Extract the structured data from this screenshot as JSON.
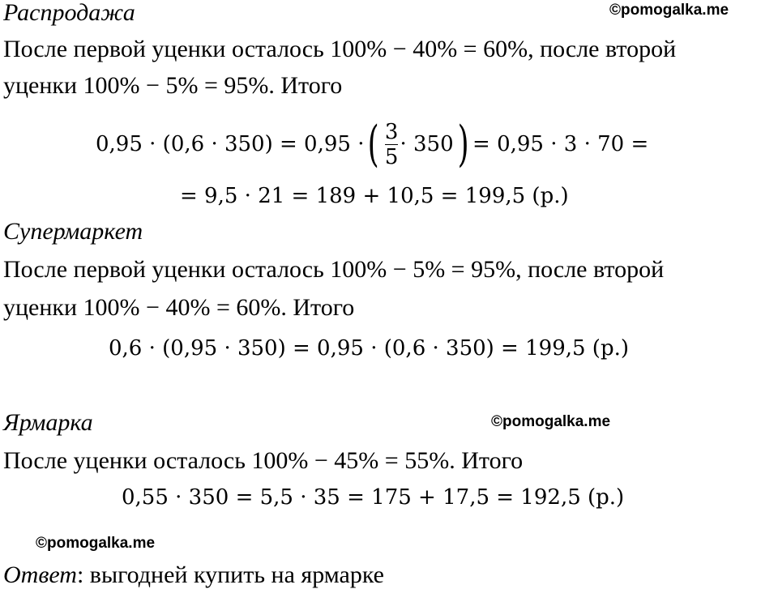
{
  "watermark": "©pomogalka.me",
  "sale": {
    "title": "Распродажа",
    "line1": "После первой уценки осталось 100% − 40% = 60%, после второй",
    "line2": "уценки 100% − 5% = 95%. Итого",
    "eq1_a": "0,95 · (0,6 · 350) = 0,95 ·",
    "frac_num": "3",
    "frac_den": "5",
    "eq1_b": "· 350",
    "eq1_c": "= 0,95 · 3 · 70 =",
    "eq2": "= 9,5 · 21 = 189 + 10,5 = 199,5 (р.)"
  },
  "supermarket": {
    "title": "Супермаркет",
    "line1": "После первой уценки осталось 100% − 5% = 95%, после второй",
    "line2": "уценки 100% − 40% = 60%. Итого",
    "eq": "0,6 · (0,95 · 350) = 0,95 · (0,6 · 350) = 199,5 (р.)"
  },
  "fair": {
    "title": "Ярмарка",
    "line1": "После уценки осталось 100% − 45% = 55%. Итого",
    "eq": "0,55 · 350 = 5,5 · 35 = 175 + 17,5 = 192,5 (р.)"
  },
  "answer": {
    "label": "Ответ",
    "text": ": выгодней купить на ярмарке"
  }
}
